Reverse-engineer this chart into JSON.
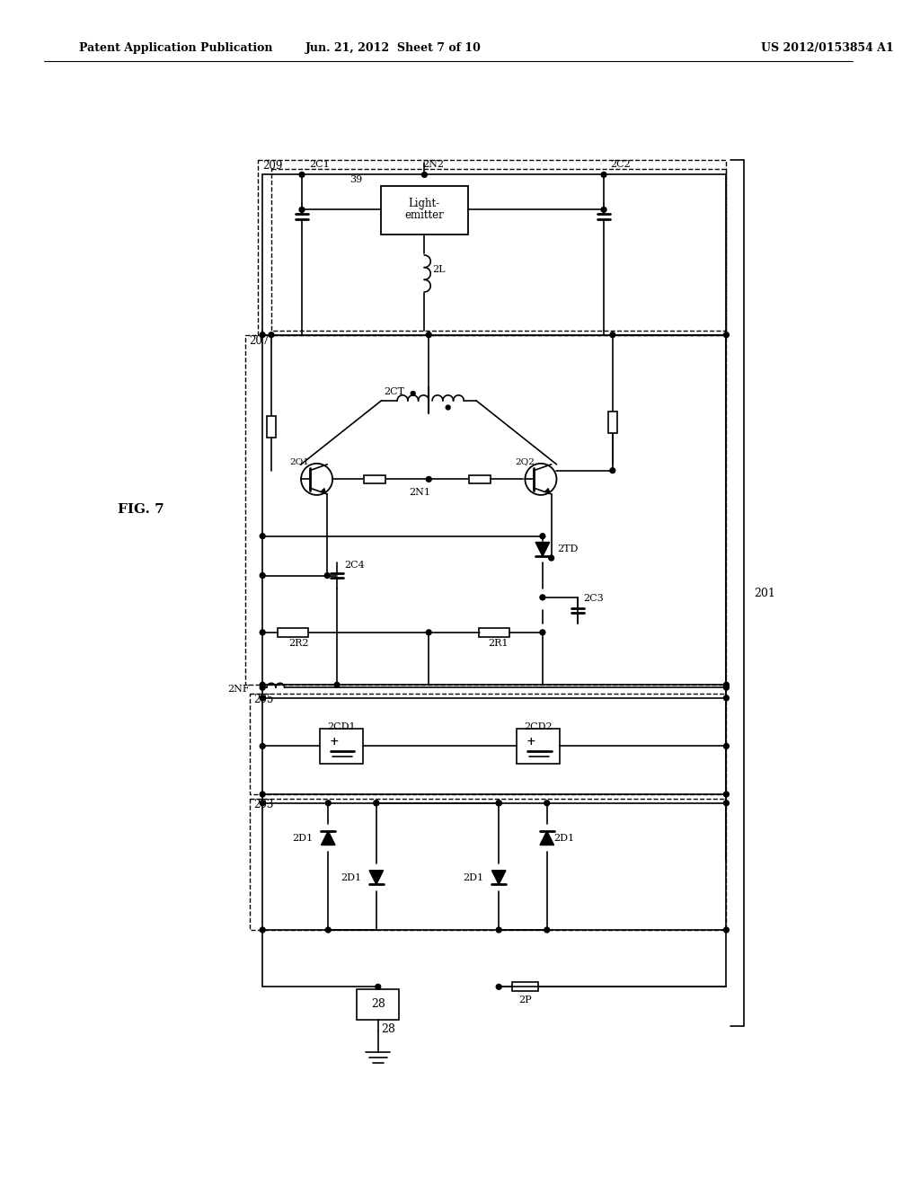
{
  "header_left": "Patent Application Publication",
  "header_center": "Jun. 21, 2012  Sheet 7 of 10",
  "header_right": "US 2012/0153854 A1",
  "fig_label": "FIG. 7",
  "bg": "#ffffff"
}
